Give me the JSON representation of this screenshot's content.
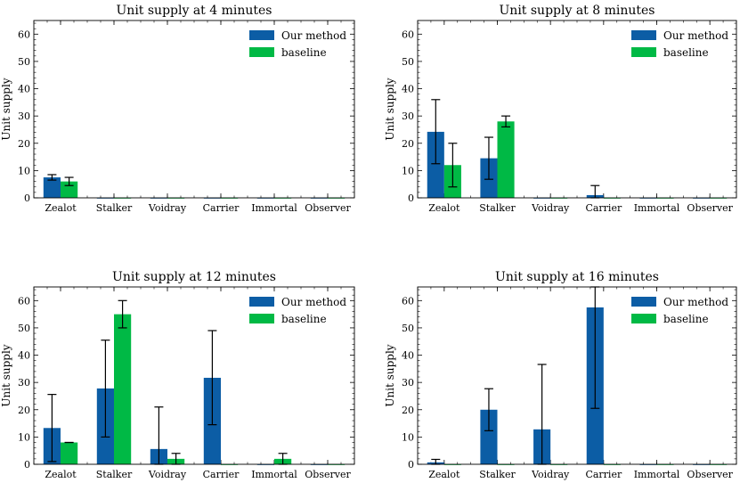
{
  "chart_data": [
    {
      "type": "bar",
      "title": "Unit supply at 4 minutes",
      "xlabel": "",
      "ylabel": "Unit supply",
      "ylim": [
        0,
        65
      ],
      "yticks": [
        0,
        10,
        20,
        30,
        40,
        50,
        60
      ],
      "categories": [
        "Zealot",
        "Stalker",
        "Voidray",
        "Carrier",
        "Immortal",
        "Observer"
      ],
      "legend_position": "top-right",
      "series": [
        {
          "name": "Our method",
          "color": "#0C5DA5",
          "values": [
            7.5,
            0,
            0,
            0,
            0,
            0
          ],
          "err_low": [
            6.5,
            0,
            0,
            0,
            0,
            0
          ],
          "err_high": [
            8.5,
            0,
            0,
            0,
            0,
            0
          ]
        },
        {
          "name": "baseline",
          "color": "#00B945",
          "values": [
            6,
            0,
            0,
            0,
            0,
            0
          ],
          "err_low": [
            4.5,
            0,
            0,
            0,
            0,
            0
          ],
          "err_high": [
            7.5,
            0,
            0,
            0,
            0,
            0
          ]
        }
      ]
    },
    {
      "type": "bar",
      "title": "Unit supply at 8 minutes",
      "xlabel": "",
      "ylabel": "Unit supply",
      "ylim": [
        0,
        65
      ],
      "yticks": [
        0,
        10,
        20,
        30,
        40,
        50,
        60
      ],
      "categories": [
        "Zealot",
        "Stalker",
        "Voidray",
        "Carrier",
        "Immortal",
        "Observer"
      ],
      "legend_position": "top-right",
      "series": [
        {
          "name": "Our method",
          "color": "#0C5DA5",
          "values": [
            24.2,
            14.5,
            0,
            1,
            0,
            0
          ],
          "err_low": [
            12.5,
            6.8,
            0,
            0,
            0,
            0
          ],
          "err_high": [
            36,
            22.2,
            0,
            4.5,
            0,
            0
          ]
        },
        {
          "name": "baseline",
          "color": "#00B945",
          "values": [
            12,
            28,
            0,
            0,
            0,
            0
          ],
          "err_low": [
            4,
            26,
            0,
            0,
            0,
            0
          ],
          "err_high": [
            20,
            30,
            0,
            0,
            0,
            0
          ]
        }
      ]
    },
    {
      "type": "bar",
      "title": "Unit supply at 12 minutes",
      "xlabel": "",
      "ylabel": "Unit supply",
      "ylim": [
        0,
        65
      ],
      "yticks": [
        0,
        10,
        20,
        30,
        40,
        50,
        60
      ],
      "categories": [
        "Zealot",
        "Stalker",
        "Voidray",
        "Carrier",
        "Immortal",
        "Observer"
      ],
      "legend_position": "top-right",
      "series": [
        {
          "name": "Our method",
          "color": "#0C5DA5",
          "values": [
            13.3,
            27.8,
            5.6,
            31.7,
            0,
            0
          ],
          "err_low": [
            1,
            10,
            0,
            14.5,
            0,
            0
          ],
          "err_high": [
            25.6,
            45.5,
            21,
            49,
            0,
            0
          ]
        },
        {
          "name": "baseline",
          "color": "#00B945",
          "values": [
            8,
            55,
            2,
            0,
            2,
            0
          ],
          "err_low": [
            8,
            50,
            0,
            0,
            0,
            0
          ],
          "err_high": [
            8,
            60,
            4,
            0,
            4,
            0
          ]
        }
      ]
    },
    {
      "type": "bar",
      "title": "Unit supply at 16 minutes",
      "xlabel": "",
      "ylabel": "Unit supply",
      "ylim": [
        0,
        65
      ],
      "yticks": [
        0,
        10,
        20,
        30,
        40,
        50,
        60
      ],
      "categories": [
        "Zealot",
        "Stalker",
        "Voidray",
        "Carrier",
        "Immortal",
        "Observer"
      ],
      "legend_position": "top-right",
      "series": [
        {
          "name": "Our method",
          "color": "#0C5DA5",
          "values": [
            0.7,
            20,
            12.8,
            57.5,
            0,
            0
          ],
          "err_low": [
            0,
            12.3,
            0,
            20.5,
            0,
            0
          ],
          "err_high": [
            1.8,
            27.7,
            36.6,
            65,
            0,
            0
          ]
        },
        {
          "name": "baseline",
          "color": "#00B945",
          "values": [
            0,
            0,
            0,
            0,
            0,
            0
          ],
          "err_low": [
            0,
            0,
            0,
            0,
            0,
            0
          ],
          "err_high": [
            0,
            0,
            0,
            0,
            0,
            0
          ]
        }
      ]
    }
  ]
}
